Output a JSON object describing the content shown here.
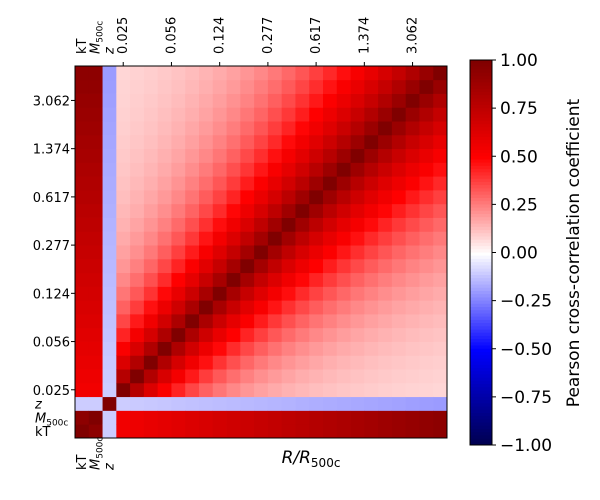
{
  "chart_data": {
    "type": "heatmap",
    "xlabel": "R/R500c",
    "axis_label_parts": {
      "main": "R/R",
      "sub": "500c"
    },
    "scalar_labels": [
      {
        "text": "kT",
        "sub": ""
      },
      {
        "text": "M",
        "sub": "500c"
      },
      {
        "text": "z",
        "sub": ""
      }
    ],
    "radial_tick_labels": [
      "0.025",
      "0.056",
      "0.124",
      "0.277",
      "0.617",
      "1.374",
      "3.062"
    ],
    "n_radial_bins": 24,
    "colorbar": {
      "label": "Pearson cross-correlation coefficient",
      "range": [
        -1.0,
        1.0
      ],
      "ticks": [
        "1.00",
        "0.75",
        "0.50",
        "0.25",
        "0.00",
        "−0.25",
        "−0.50",
        "−0.75",
        "−1.00"
      ],
      "colormap": "seismic"
    },
    "matrix_description": {
      "scalar_kT_M500c": 0.95,
      "scalar_z_with_profile": -0.1,
      "profile_diagonal": 1.0,
      "profile_correlation_length_bins": 6.5,
      "profile_floor": 0.05
    }
  }
}
